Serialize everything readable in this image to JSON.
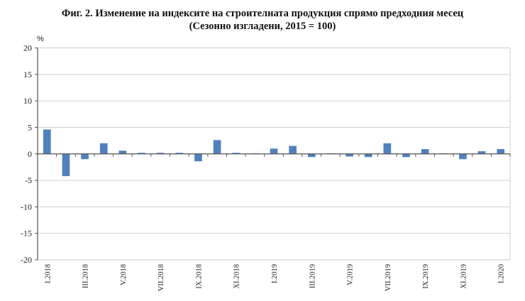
{
  "chart_data": {
    "type": "bar",
    "title": "Фиг. 2. Изменение на индексите на строителната продукция спрямо предходния месец",
    "subtitle": "(Сезонно изгладени, 2015 = 100)",
    "xlabel": "",
    "ylabel": "%",
    "ylim": [
      -20,
      20
    ],
    "yticks": [
      20,
      15,
      10,
      5,
      0,
      -5,
      -10,
      -15,
      -20
    ],
    "grid": true,
    "legend": null,
    "bar_color": "#4F81BD",
    "categories": [
      "I.2018",
      "II.2018",
      "III.2018",
      "IV.2018",
      "V.2018",
      "VI.2018",
      "VII.2018",
      "VIII.2018",
      "IX.2018",
      "X.2018",
      "XI.2018",
      "XII.2018",
      "I.2019",
      "II.2019",
      "III.2019",
      "IV.2019",
      "V.2019",
      "VI.2019",
      "VII.2019",
      "VIII.2019",
      "IX.2019",
      "X.2019",
      "XI.2019",
      "XII.2019",
      "I.2020"
    ],
    "shown_tick_labels": [
      "I.2018",
      "III.2018",
      "V.2018",
      "VII.2018",
      "IX.2018",
      "XI.2018",
      "I.2019",
      "III.2019",
      "V.2019",
      "VII.2019",
      "IX.2019",
      "XI.2019",
      "I.2020"
    ],
    "values": [
      4.6,
      -4.2,
      -1.0,
      2.0,
      0.6,
      0.2,
      0.2,
      0.2,
      -1.4,
      2.6,
      0.2,
      0.1,
      1.0,
      1.5,
      -0.6,
      0.1,
      -0.5,
      -0.6,
      2.0,
      -0.6,
      0.9,
      0.0,
      -1.0,
      0.5,
      0.9
    ]
  },
  "header": {
    "title_line1": "Фиг. 2. Изменение на индексите на строителната продукция спрямо предходния месец",
    "title_line2": "(Сезонно изгладени, 2015 = 100)"
  },
  "axis": {
    "unit_label": "%"
  }
}
